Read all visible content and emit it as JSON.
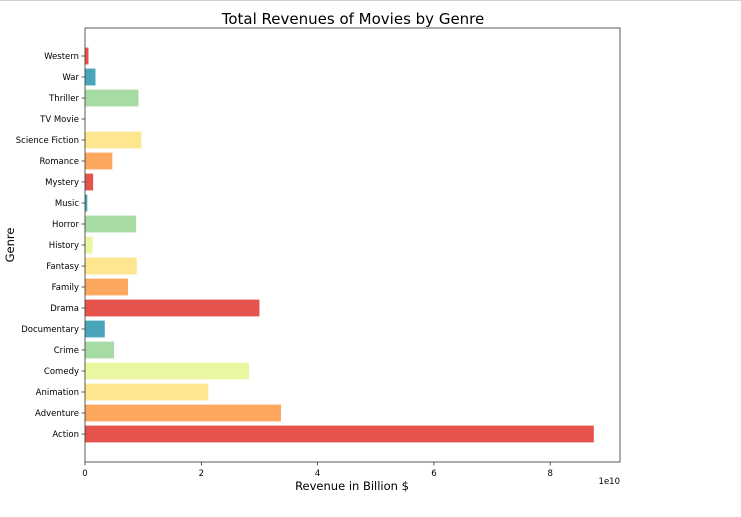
{
  "chart_data": {
    "type": "bar",
    "orientation": "horizontal",
    "title": "Total Revenues of Movies by Genre",
    "xlabel": "Revenue in Billion $",
    "ylabel": "Genre",
    "offset_text": "1e10",
    "x_scale": 10000000000,
    "xlim": [
      0,
      9.2
    ],
    "xticks": [
      0,
      2,
      4,
      6,
      8
    ],
    "grid": false,
    "categories": [
      "Action",
      "Adventure",
      "Animation",
      "Comedy",
      "Crime",
      "Documentary",
      "Drama",
      "Family",
      "Fantasy",
      "History",
      "Horror",
      "Music",
      "Mystery",
      "Romance",
      "Science Fiction",
      "TV Movie",
      "Thriller",
      "War",
      "Western"
    ],
    "values": [
      8.75,
      3.37,
      2.12,
      2.82,
      0.5,
      0.34,
      3.0,
      0.74,
      0.89,
      0.13,
      0.88,
      0.04,
      0.14,
      0.47,
      0.97,
      0.0,
      0.92,
      0.18,
      0.06
    ],
    "colors": [
      "#e6534c",
      "#fca65e",
      "#fee690",
      "#ebf7a0",
      "#a6dba4",
      "#49a5b9",
      "#e6534c",
      "#fca65e",
      "#fee690",
      "#ebf7a0",
      "#a6dba4",
      "#49a5b9",
      "#e6534c",
      "#fca65e",
      "#fee690",
      "#ebf7a0",
      "#a6dba4",
      "#49a5b9",
      "#e6534c"
    ]
  }
}
